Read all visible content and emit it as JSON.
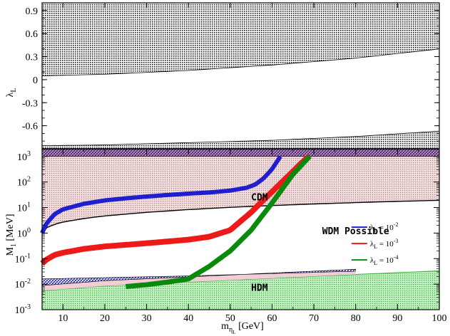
{
  "chart_data": [
    {
      "type": "area",
      "panel": "top",
      "ylabel": "λ",
      "ylabel_sub": "L",
      "ylim": [
        -0.9,
        1.0
      ],
      "xlim": [
        5,
        100
      ],
      "yticks": [
        {
          "v": 0.9,
          "label": "0.9"
        },
        {
          "v": 0.6,
          "label": "0.6"
        },
        {
          "v": 0.3,
          "label": "0.3"
        },
        {
          "v": 0,
          "label": "0"
        },
        {
          "v": -0.3,
          "label": "-0.3"
        },
        {
          "v": -0.6,
          "label": "-0.6"
        }
      ],
      "series": [
        {
          "kind": "excluded-upper",
          "color": "#000000",
          "x": [
            5,
            20,
            40,
            60,
            80,
            100
          ],
          "y": [
            0.05,
            0.07,
            0.12,
            0.19,
            0.28,
            0.4
          ]
        },
        {
          "kind": "excluded-lower",
          "color": "#000000",
          "x": [
            5,
            20,
            40,
            60,
            80,
            100
          ],
          "y": [
            -0.86,
            -0.85,
            -0.82,
            -0.79,
            -0.74,
            -0.67
          ]
        }
      ]
    },
    {
      "type": "line",
      "panel": "bottom",
      "log_y": true,
      "xlabel": "m",
      "xlabel_sub": "η",
      "xlabel_subsub": "L",
      "xlabel_unit": " [GeV]",
      "ylabel": "M",
      "ylabel_sub": "1",
      "ylabel_unit": " [MeV]",
      "xlim": [
        5,
        100
      ],
      "ylim": [
        0.001,
        2000
      ],
      "xticks": [
        {
          "v": 10,
          "label": "10"
        },
        {
          "v": 20,
          "label": "20"
        },
        {
          "v": 30,
          "label": "30"
        },
        {
          "v": 40,
          "label": "40"
        },
        {
          "v": 50,
          "label": "50"
        },
        {
          "v": 60,
          "label": "60"
        },
        {
          "v": 70,
          "label": "70"
        },
        {
          "v": 80,
          "label": "80"
        },
        {
          "v": 90,
          "label": "90"
        },
        {
          "v": 100,
          "label": "100"
        }
      ],
      "yticks": [
        {
          "v": 1000,
          "base": "10",
          "exp": "3"
        },
        {
          "v": 100,
          "base": "10",
          "exp": "2"
        },
        {
          "v": 10,
          "base": "10",
          "exp": "1"
        },
        {
          "v": 1,
          "base": "10",
          "exp": "0"
        },
        {
          "v": 0.1,
          "base": "10",
          "exp": "-1"
        },
        {
          "v": 0.01,
          "base": "10",
          "exp": "-2"
        },
        {
          "v": 0.001,
          "base": "10",
          "exp": "-3"
        }
      ],
      "regions": {
        "top_band": {
          "y_low": 1000,
          "y_high": 1900,
          "color": "#aa2266"
        },
        "cdm_boundary": {
          "x": [
            5,
            6,
            8,
            10,
            15,
            20,
            30,
            40,
            50,
            60,
            70,
            80,
            90,
            100
          ],
          "y": [
            1.0,
            1.6,
            2.2,
            2.7,
            3.7,
            4.7,
            6.5,
            8.3,
            10.2,
            12.0,
            13.8,
            15.6,
            17.4,
            19.2
          ],
          "fill_color": "#e8c8c8"
        },
        "hdm_boundary": {
          "x": [
            5,
            20,
            40,
            60,
            80,
            100
          ],
          "y": [
            0.0055,
            0.0085,
            0.012,
            0.017,
            0.024,
            0.033
          ],
          "fill_color": "#7ddc7d"
        },
        "hatched_band": {
          "x": [
            5,
            20,
            40,
            60,
            80
          ],
          "y_low": [
            0.0055,
            0.0085,
            0.012,
            0.017,
            0.024
          ],
          "y_high": [
            0.016,
            0.018,
            0.021,
            0.026,
            0.032
          ]
        }
      },
      "series": [
        {
          "name": "λ",
          "name_sub": "L",
          "name_value": " = 10",
          "name_exp": "-2",
          "color": "#1f1fd0",
          "x": [
            5,
            6,
            8,
            10,
            15,
            20,
            25,
            30,
            35,
            40,
            45,
            50,
            54,
            56,
            58,
            60,
            62
          ],
          "y": [
            1.0,
            2.3,
            5.5,
            8.5,
            14,
            19,
            23,
            27,
            31,
            35,
            39,
            46,
            60,
            80,
            140,
            320,
            1000
          ]
        },
        {
          "name": "λ",
          "name_sub": "L",
          "name_value": " = 10",
          "name_exp": "-3",
          "color": "#ee1a1a",
          "x": [
            5,
            6,
            8,
            10,
            15,
            20,
            30,
            40,
            45,
            50,
            52,
            55,
            58,
            61,
            64,
            67,
            69
          ],
          "y": [
            0.065,
            0.09,
            0.14,
            0.17,
            0.24,
            0.3,
            0.4,
            0.55,
            0.72,
            1.3,
            2.5,
            6.5,
            20,
            60,
            180,
            550,
            1050
          ]
        },
        {
          "name": "λ",
          "name_sub": "L",
          "name_value": " = 10",
          "name_exp": "-4",
          "color": "#0a8a0a",
          "x": [
            25,
            30,
            35,
            40,
            45,
            50,
            55,
            60,
            65,
            69
          ],
          "y": [
            0.008,
            0.0095,
            0.012,
            0.016,
            0.05,
            0.2,
            1.3,
            15,
            200,
            1000
          ]
        }
      ],
      "annotations": [
        {
          "text": "CDM",
          "x": 57,
          "y": 19
        },
        {
          "text": "WDM Possible",
          "x": 80,
          "y": 0.9
        },
        {
          "text": "HDM",
          "x": 57,
          "y": 0.0055
        }
      ],
      "legend_position": "right"
    }
  ]
}
